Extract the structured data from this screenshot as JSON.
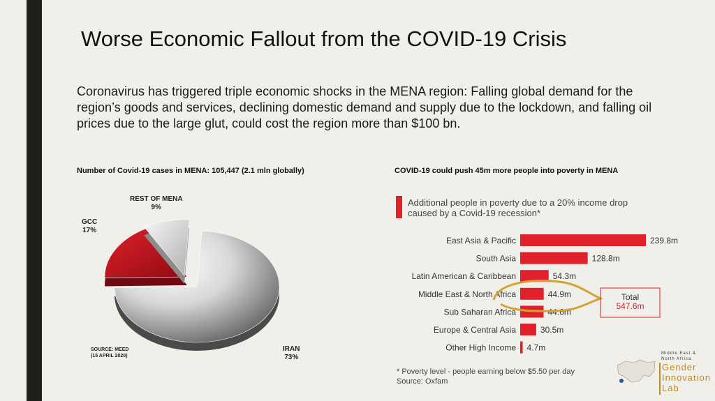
{
  "slide": {
    "title": "Worse Economic Fallout from the COVID-19 Crisis",
    "intro": "Coronavirus has triggered triple economic shocks in the MENA region: Falling global demand for the region’s goods and services, declining domestic demand and supply due to the lockdown, and falling oil prices due to the large glut, could cost the region more than $100 bn."
  },
  "left_caption": "Number of Covid-19 cases in MENA: 105,447 (2.1 mln globally)",
  "right_caption": "COVID-19 could push 45m more people into poverty in MENA",
  "pie_labels": {
    "rest_name": "REST OF MENA",
    "rest_pct": "9%",
    "gcc_name": "GCC",
    "gcc_pct": "17%",
    "iran_name": "IRAN",
    "iran_pct": "73%"
  },
  "pie_source": [
    "SOURCE: MEED",
    "(15 APRIL 2020)"
  ],
  "bar_legend": "Additional people in poverty due to a 20% income drop caused by a Covid-19 recession*",
  "bar_footnotes": [
    "* Poverty level - people earning below $5.50 per day",
    "Source: Oxfam"
  ],
  "total_box": {
    "label": "Total",
    "value": "547.6m"
  },
  "logo": {
    "top": [
      "Middle East &",
      "North Africa"
    ],
    "name": [
      "Gender",
      "Innovation",
      "Lab"
    ]
  },
  "colors": {
    "bar": "#e0202b",
    "gcc": "#c8141e",
    "total": "#d9202a",
    "annotation": "#d3a135",
    "sidebar": "#1f1f1b"
  },
  "chart_data": [
    {
      "type": "pie",
      "title": "Number of Covid-19 cases in MENA: 105,447 (2.1 mln globally)",
      "categories": [
        "IRAN",
        "GCC",
        "REST OF MENA"
      ],
      "values": [
        73,
        17,
        9
      ],
      "unit": "%"
    },
    {
      "type": "bar",
      "orientation": "horizontal",
      "title": "COVID-19 could push 45m more people into poverty in MENA",
      "categories": [
        "East Asia & Pacific",
        "South Asia",
        "Latin American & Caribbean",
        "Middle East & North Africa",
        "Sub Saharan Africa",
        "Europe & Central Asia",
        "Other High Income"
      ],
      "values": [
        239.8,
        128.8,
        54.3,
        44.9,
        44.6,
        30.5,
        4.7
      ],
      "labels": [
        "239.8m",
        "128.8m",
        "54.3m",
        "44.9m",
        "44.6m",
        "30.5m",
        "4.7m"
      ],
      "unit": "m",
      "grid": false
    }
  ]
}
